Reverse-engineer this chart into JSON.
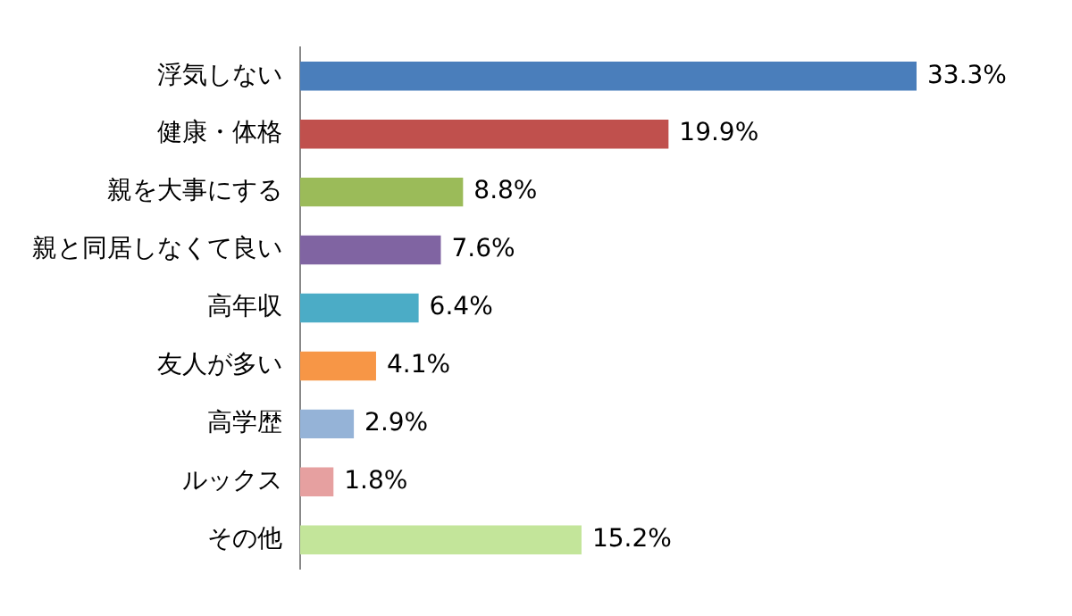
{
  "chart_data": {
    "type": "bar",
    "orientation": "horizontal",
    "categories": [
      "浮気しない",
      "健康・体格",
      "親を大事にする",
      "親と同居しなくて良い",
      "高年収",
      "友人が多い",
      "高学歴",
      "ルックス",
      "その他"
    ],
    "values": [
      33.3,
      19.9,
      8.8,
      7.6,
      6.4,
      4.1,
      2.9,
      1.8,
      15.2
    ],
    "colors": [
      "#4a7ebb",
      "#c0504d",
      "#9bbb59",
      "#8064a2",
      "#4bacc6",
      "#f79646",
      "#95b3d7",
      "#e6a0a0",
      "#c3e59a"
    ],
    "value_labels": [
      "33.3%",
      "19.9%",
      "8.8%",
      "7.6%",
      "6.4%",
      "4.1%",
      "2.9%",
      "1.8%",
      "15.2%"
    ],
    "legend": false
  }
}
